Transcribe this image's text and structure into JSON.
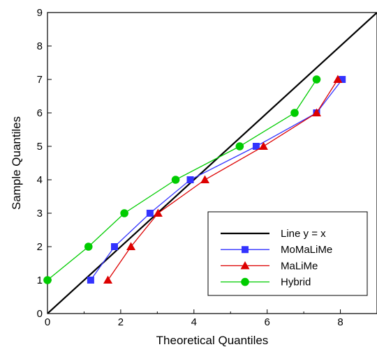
{
  "chart_data": {
    "type": "line",
    "xlabel": "Theoretical Quantiles",
    "ylabel": "Sample Quantiles",
    "xlim": [
      0,
      9
    ],
    "ylim": [
      0,
      9
    ],
    "xticks": [
      "0",
      "2",
      "4",
      "6",
      "8"
    ],
    "xtick_values": [
      0,
      2,
      4,
      6,
      8
    ],
    "yticks": [
      "0",
      "1",
      "2",
      "3",
      "4",
      "5",
      "6",
      "7",
      "8",
      "9"
    ],
    "ytick_values": [
      0,
      1,
      2,
      3,
      4,
      5,
      6,
      7,
      8,
      9
    ],
    "grid": false,
    "legend_position": "bottom-right",
    "reference_line": {
      "name": "Line y = x",
      "color": "#000000",
      "x": [
        0,
        9
      ],
      "y": [
        0,
        9
      ]
    },
    "series": [
      {
        "name": "MoMaLiMe",
        "color": "#3333ff",
        "marker": "square",
        "x": [
          1.18,
          1.83,
          2.8,
          3.9,
          5.7,
          7.35,
          8.05
        ],
        "y": [
          1,
          2,
          3,
          4,
          5,
          6,
          7
        ]
      },
      {
        "name": "MaLiMe",
        "color": "#dd0000",
        "marker": "triangle",
        "x": [
          1.65,
          2.28,
          3.02,
          4.3,
          5.9,
          7.35,
          7.93
        ],
        "y": [
          1,
          2,
          3,
          4,
          5,
          6,
          7
        ]
      },
      {
        "name": "Hybrid",
        "color": "#00cc00",
        "marker": "circle",
        "x": [
          0.0,
          1.12,
          2.1,
          3.5,
          5.25,
          6.75,
          7.35
        ],
        "y": [
          1,
          2,
          3,
          4,
          5,
          6,
          7
        ]
      }
    ]
  }
}
